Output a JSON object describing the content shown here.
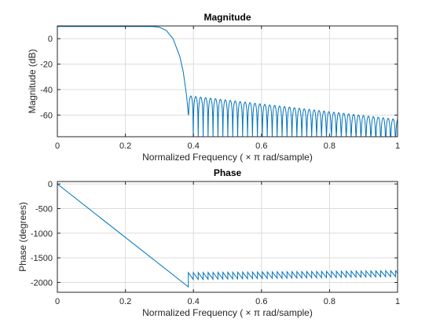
{
  "chart_data": [
    {
      "type": "line",
      "title": "Magnitude",
      "xlabel": "Normalized  Frequency    ( × π  rad/sample)",
      "ylabel": "Magnitude (dB)",
      "xlim": [
        0,
        1
      ],
      "ylim": [
        -77,
        10
      ],
      "xticks": [
        0,
        0.2,
        0.4,
        0.6,
        0.8,
        1
      ],
      "xtick_labels": [
        "0",
        "0.2",
        "0.4",
        "0.6",
        "0.8",
        "1"
      ],
      "yticks": [
        0,
        -20,
        -40,
        -60
      ],
      "ytick_labels": [
        "0",
        "-20",
        "-40",
        "-60"
      ],
      "grid": true,
      "series": [
        {
          "color": "#0072BD",
          "passband": {
            "x_end": 0.28,
            "value": 9.5
          },
          "transition": {
            "x": [
              0.28,
              0.3,
              0.32,
              0.34,
              0.36,
              0.37,
              0.38,
              0.385
            ],
            "y": [
              9.5,
              9,
              6.5,
              0,
              -14,
              -26,
              -45,
              -60
            ]
          },
          "stopband": {
            "x_start": 0.385,
            "first_lobe_peak": -45,
            "last_lobe_peak": -63,
            "lobe_width": 0.0145,
            "floor": -77
          }
        }
      ]
    },
    {
      "type": "line",
      "title": "Phase",
      "xlabel": "Normalized  Frequency    ( × π  rad/sample)",
      "ylabel": "Phase (degrees)",
      "xlim": [
        0,
        1
      ],
      "ylim": [
        -2200,
        50
      ],
      "xticks": [
        0,
        0.2,
        0.4,
        0.6,
        0.8,
        1
      ],
      "xtick_labels": [
        "0",
        "0.2",
        "0.4",
        "0.6",
        "0.8",
        "1"
      ],
      "yticks": [
        0,
        -500,
        -1000,
        -1500,
        -2000
      ],
      "ytick_labels": [
        "0",
        "-500",
        "-1000",
        "-1500",
        "-2000"
      ],
      "grid": true,
      "series": [
        {
          "color": "#0072BD",
          "linear": {
            "x": [
              0,
              0.385
            ],
            "y": [
              0,
              -2090
            ]
          },
          "sawtooth": {
            "x_start": 0.385,
            "period": 0.0145,
            "low": -1940,
            "high": -1800,
            "end_low": -1880,
            "end_high": -1760
          }
        }
      ]
    }
  ]
}
